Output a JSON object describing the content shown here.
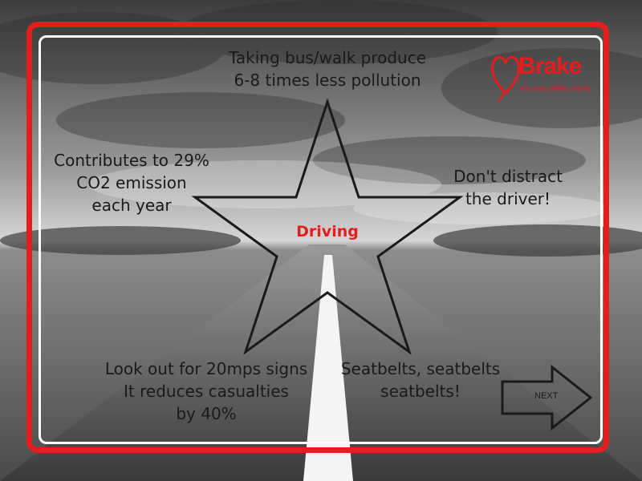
{
  "center_label": "Driving",
  "facts": {
    "top": [
      "Taking bus/walk produce",
      "6-8 times less pollution"
    ],
    "left": [
      "Contributes to 29%",
      "CO2 emission",
      "each year"
    ],
    "right": [
      "Don't distract",
      "the driver!"
    ],
    "bottom_left": [
      "Look out for 20mps signs",
      "It reduces casualties",
      "by 40%"
    ],
    "bottom_right": [
      "Seatbelts, seatbelts",
      "seatbelts!"
    ]
  },
  "logo": {
    "name": "Brake",
    "tagline": "the road safety charity"
  },
  "next_button": {
    "label": "NEXT"
  },
  "colors": {
    "accent_red": "#e41e1e",
    "frame_white": "#ffffff",
    "text_dark": "#1a1a1a"
  }
}
